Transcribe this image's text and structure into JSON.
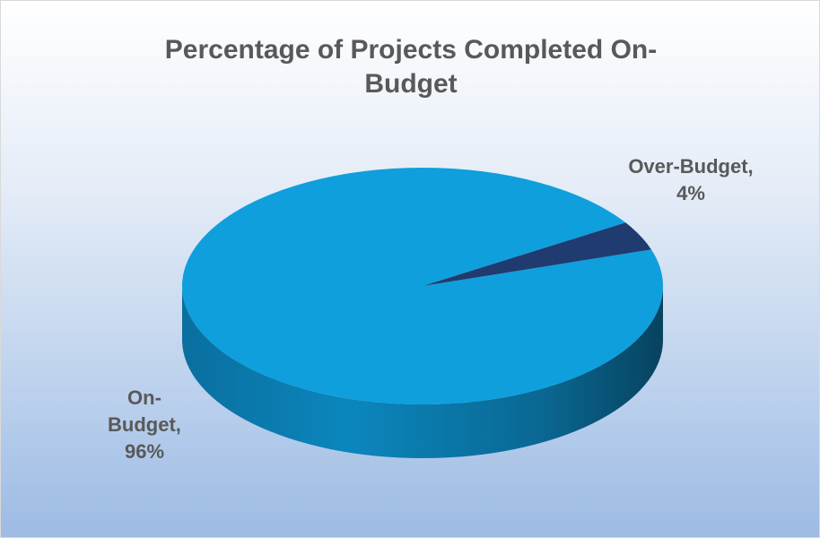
{
  "chart_data": {
    "type": "pie",
    "title": "Percentage of Projects Completed On-Budget",
    "categories": [
      "On-Budget",
      "Over-Budget"
    ],
    "values": [
      96,
      4
    ],
    "value_labels": [
      "On-Budget, 96%",
      "Over-Budget, 4%"
    ],
    "colors": [
      "#0f9fdc",
      "#1f3b6f"
    ]
  }
}
